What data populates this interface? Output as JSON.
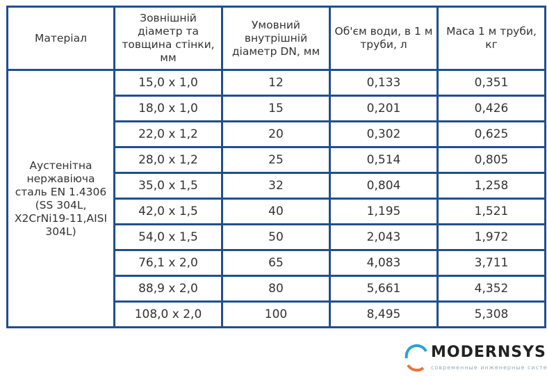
{
  "table": {
    "headers": [
      "Матеріал",
      "Зовнішній діаметр та товщина стінки, мм",
      "Умовний внутрішній діаметр DN, мм",
      "Об'єм води, в 1 м труби, л",
      "Маса 1 м труби, кг"
    ],
    "material": "Аустенітна нержавіюча сталь EN 1.4306 (SS 304L, X2CrNi19-11,AISI 304L)",
    "rows": [
      [
        "15,0 x 1,0",
        "12",
        "0,133",
        "0,351"
      ],
      [
        "18,0 x 1,0",
        "15",
        "0,201",
        "0,426"
      ],
      [
        "22,0 x 1,2",
        "20",
        "0,302",
        "0,625"
      ],
      [
        "28,0 x 1,2",
        "25",
        "0,514",
        "0,805"
      ],
      [
        "35,0 x 1,5",
        "32",
        "0,804",
        "1,258"
      ],
      [
        "42,0 x 1,5",
        "40",
        "1,195",
        "1,521"
      ],
      [
        "54,0 x 1,5",
        "50",
        "2,043",
        "1,972"
      ],
      [
        "76,1 x 2,0",
        "65",
        "4,083",
        "3,711"
      ],
      [
        "88,9 x 2,0",
        "80",
        "5,661",
        "4,352"
      ],
      [
        "108,0 x 2,0",
        "100",
        "8,495",
        "5,308"
      ]
    ]
  },
  "watermark": {
    "name": "MODERNSYS",
    "tagline": "современные инженерные системы"
  },
  "colors": {
    "border": "#1f4f8f",
    "logo_blue": "#2a9fd8",
    "logo_orange": "#e8743b"
  }
}
